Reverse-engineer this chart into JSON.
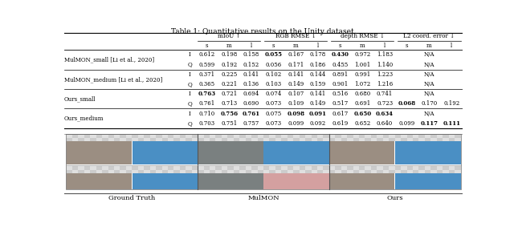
{
  "title": "Table 1: Quantitative results on the Unity dataset.",
  "col_groups": [
    {
      "name": "mIoU ↑",
      "subcols": [
        "s",
        "m",
        "l"
      ]
    },
    {
      "name": "RGB RMSE ↓",
      "subcols": [
        "s",
        "m",
        "l"
      ]
    },
    {
      "name": "depth RMSE ↓",
      "subcols": [
        "s",
        "m",
        "l"
      ]
    },
    {
      "name": "L2 coord. error ↓",
      "subcols": [
        "s",
        "m",
        "l"
      ]
    }
  ],
  "rows": [
    {
      "method": "MulMON_small [Li et al., 2020]",
      "sub": "I",
      "values": [
        "0.612",
        "0.198",
        "0.158",
        "**0.055**",
        "0.167",
        "0.178",
        "**0.430**",
        "0.972",
        "1.183",
        "",
        "N/A",
        ""
      ]
    },
    {
      "method": "",
      "sub": "Q",
      "values": [
        "0.599",
        "0.192",
        "0.152",
        "0.056",
        "0.171",
        "0.186",
        "0.455",
        "1.001",
        "1.140",
        "",
        "N/A",
        ""
      ]
    },
    {
      "method": "MulMON_medium [Li et al., 2020]",
      "sub": "I",
      "values": [
        "0.371",
        "0.225",
        "0.141",
        "0.102",
        "0.141",
        "0.144",
        "0.891",
        "0.991",
        "1.223",
        "",
        "N/A",
        ""
      ]
    },
    {
      "method": "",
      "sub": "Q",
      "values": [
        "0.365",
        "0.221",
        "0.136",
        "0.103",
        "0.149",
        "0.159",
        "0.901",
        "1.072",
        "1.216",
        "",
        "N/A",
        ""
      ]
    },
    {
      "method": "Ours_small",
      "sub": "I",
      "values": [
        "**0.763**",
        "0.721",
        "0.694",
        "0.074",
        "0.107",
        "0.141",
        "0.516",
        "0.680",
        "0.741",
        "",
        "N/A",
        ""
      ]
    },
    {
      "method": "",
      "sub": "Q",
      "values": [
        "0.761",
        "0.713",
        "0.690",
        "0.073",
        "0.109",
        "0.149",
        "0.517",
        "0.691",
        "0.723",
        "**0.068**",
        "0.170",
        "0.192"
      ]
    },
    {
      "method": "Ours_medium",
      "sub": "I",
      "values": [
        "0.710",
        "**0.756**",
        "**0.761**",
        "0.075",
        "**0.098**",
        "**0.091**",
        "0.617",
        "**0.650**",
        "**0.634**",
        "",
        "N/A",
        ""
      ]
    },
    {
      "method": "",
      "sub": "Q",
      "values": [
        "0.703",
        "0.751",
        "0.757",
        "0.073",
        "0.099",
        "0.092",
        "0.619",
        "0.652",
        "0.640",
        "0.099",
        "**0.117**",
        "**0.111**"
      ]
    }
  ],
  "image_labels": [
    "Ground Truth",
    "MulMON",
    "Ours"
  ],
  "figure_bg": "#ffffff",
  "panel_top_left_colors": [
    "#9b8e82",
    "#7a8080",
    "#9b8e82"
  ],
  "panel_top_right_colors": [
    "#4a8fc4",
    "#4a8fc4",
    "#4a8fc4"
  ],
  "panel_bot_left_colors": [
    "#9b8e82",
    "#7a8080",
    "#9b8e82"
  ],
  "panel_bot_right_colors": [
    "#4a8fc4",
    "#c8a0a0",
    "#4a8fc4"
  ],
  "checker_color": "#cccccc",
  "checker_bg": "#e8e8e8"
}
